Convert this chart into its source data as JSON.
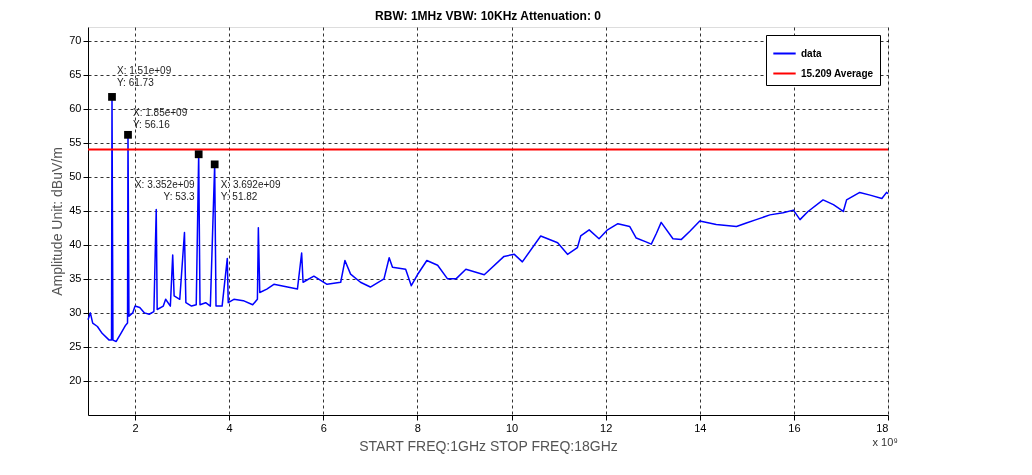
{
  "chart_data": {
    "type": "line",
    "title": "RBW: 1MHz   VBW: 10KHz  Attenuation: 0",
    "xlabel": "START FREQ:1GHz          STOP FREQ:18GHz",
    "ylabel": "Amplitude Unit: dBuV/m",
    "x": [
      1.0,
      1.05,
      1.1,
      1.2,
      1.3,
      1.45,
      1.5,
      1.51,
      1.53,
      1.6,
      1.7,
      1.8,
      1.84,
      1.85,
      1.87,
      1.95,
      2.0,
      2.1,
      2.2,
      2.3,
      2.4,
      2.45,
      2.47,
      2.6,
      2.65,
      2.75,
      2.8,
      2.83,
      2.95,
      3.05,
      3.08,
      3.2,
      3.3,
      3.352,
      3.38,
      3.5,
      3.6,
      3.692,
      3.72,
      3.85,
      3.96,
      3.98,
      4.1,
      4.3,
      4.5,
      4.6,
      4.62,
      4.65,
      4.8,
      4.95,
      5.45,
      5.54,
      5.57,
      5.8,
      6.08,
      6.37,
      6.46,
      6.58,
      6.79,
      7.0,
      7.29,
      7.4,
      7.47,
      7.75,
      7.87,
      8.0,
      8.2,
      8.43,
      8.64,
      8.82,
      9.03,
      9.42,
      9.84,
      10.06,
      10.23,
      10.62,
      10.98,
      11.19,
      11.4,
      11.47,
      11.65,
      11.86,
      12.04,
      12.26,
      12.51,
      12.65,
      12.87,
      12.97,
      13.08,
      13.18,
      13.43,
      13.61,
      13.79,
      14.0,
      14.35,
      14.78,
      14.99,
      15.2,
      15.49,
      15.77,
      15.99,
      16.13,
      16.3,
      16.62,
      16.84,
      17.05,
      17.12,
      17.4,
      17.62,
      17.87,
      17.97,
      18.0
    ],
    "series": [
      {
        "name": "data",
        "color": "#0000ff",
        "values": [
          29,
          30,
          28.5,
          28,
          27,
          26,
          26,
          61.73,
          26,
          25.8,
          27,
          28.2,
          28.5,
          56.16,
          29.5,
          30,
          31,
          30.8,
          30,
          29.8,
          30.2,
          45.2,
          30.5,
          31,
          32,
          31,
          38.5,
          32.5,
          32,
          41.8,
          31.5,
          31,
          31.2,
          53.3,
          31.2,
          31.5,
          31,
          51.82,
          31,
          31,
          38,
          31.5,
          32,
          31.8,
          31.2,
          32,
          42.5,
          33,
          33.5,
          34.2,
          33.5,
          38.8,
          34.5,
          35.4,
          34.2,
          34.5,
          37.7,
          35.7,
          34.5,
          33.8,
          35,
          38.1,
          36.7,
          36.4,
          34,
          35.6,
          37.7,
          37,
          35,
          35,
          36.4,
          35.6,
          38.3,
          38.6,
          37.5,
          41.3,
          40.3,
          38.6,
          39.6,
          41.3,
          42.2,
          40.9,
          42.2,
          43.1,
          42.7,
          41,
          40.4,
          40.1,
          41.7,
          43.3,
          40.9,
          40.8,
          42,
          43.5,
          43,
          42.7,
          43.2,
          43.7,
          44.4,
          44.7,
          45.1,
          43.7,
          44.9,
          46.6,
          45.9,
          44.9,
          46.6,
          47.7,
          47.3,
          46.8,
          47.7,
          47.5
        ]
      }
    ],
    "ref_lines": [
      {
        "axis": "y",
        "value": 54,
        "label": "15.209 Average",
        "color": "#ff0000"
      }
    ],
    "annotations": [
      {
        "text": "X: 1.51e+09\nY: 61.73",
        "x": 1.51,
        "y": 61.73
      },
      {
        "text": "X: 1.85e+09\nY: 56.16",
        "x": 1.85,
        "y": 56.16
      },
      {
        "text": "X: 3.352e+09\nY: 53.3",
        "x": 3.352,
        "y": 53.3
      },
      {
        "text": "X: 3.692e+09\nY: 51.82",
        "x": 3.692,
        "y": 51.82
      },
      "x 10⁹"
    ],
    "xlim": [
      1,
      18
    ],
    "xticks": [
      2,
      4,
      6,
      8,
      10,
      12,
      14,
      16,
      18
    ],
    "ylim": [
      15,
      72
    ],
    "yticks": [
      20,
      25,
      30,
      35,
      40,
      45,
      50,
      55,
      60,
      65,
      70
    ],
    "grid": true,
    "legend": "top right",
    "marker": "none",
    "line_style": "solid"
  }
}
